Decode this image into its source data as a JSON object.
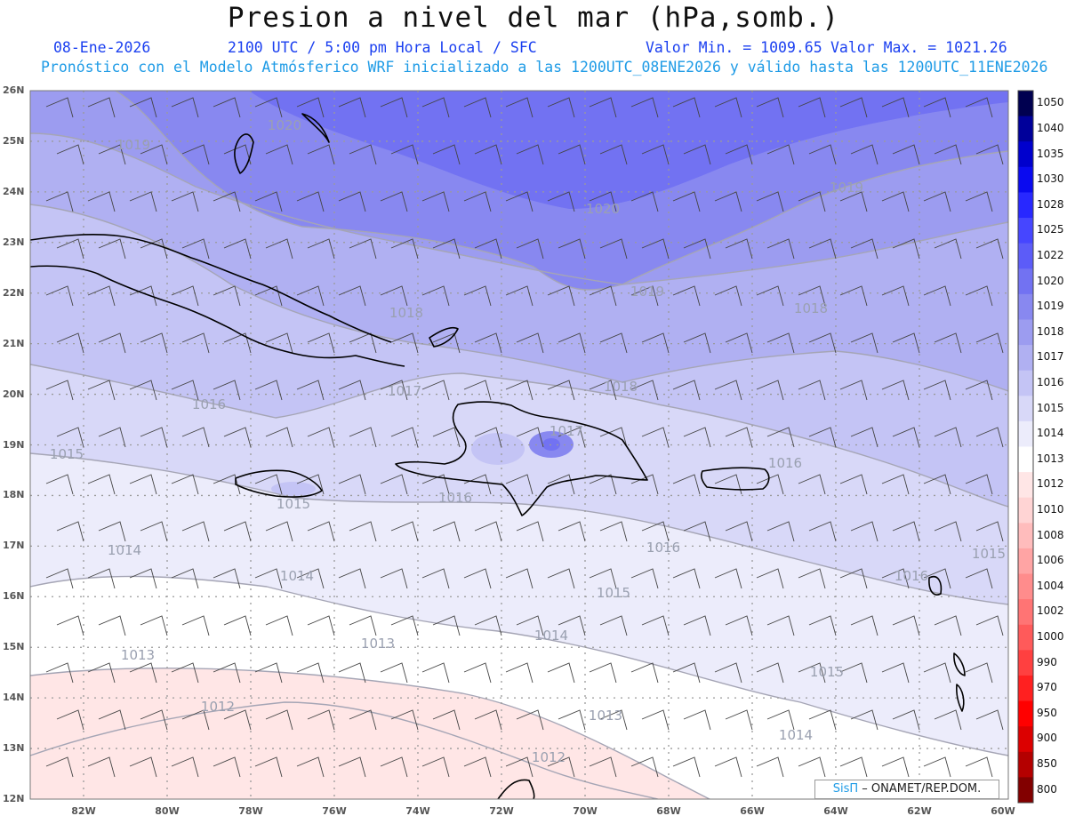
{
  "header": {
    "title": "Presion a nivel del mar (hPa,somb.)",
    "date": "08-Ene-2026",
    "time": "2100 UTC / 5:00 pm Hora Local / SFC",
    "min_label": "Valor Min. = 1009.65",
    "max_label": "Valor Max. = 1021.26",
    "model_info": "Pronóstico con el Modelo Atmósferico WRF inicializado a las 1200UTC_08ENE2026 y válido hasta las  1200UTC_11ENE2026"
  },
  "lat_labels": [
    "26N",
    "25N",
    "24N",
    "23N",
    "22N",
    "21N",
    "20N",
    "19N",
    "18N",
    "17N",
    "16N",
    "15N",
    "14N",
    "13N",
    "12N"
  ],
  "lon_labels": [
    "82W",
    "80W",
    "78W",
    "76W",
    "74W",
    "72W",
    "70W",
    "68W",
    "66W",
    "64W",
    "62W",
    "60W"
  ],
  "colorbar": {
    "levels": [
      "1050",
      "1040",
      "1035",
      "1030",
      "1028",
      "1025",
      "1022",
      "1020",
      "1019",
      "1018",
      "1017",
      "1016",
      "1015",
      "1014",
      "1013",
      "1012",
      "1010",
      "1008",
      "1006",
      "1004",
      "1002",
      "1000",
      "990",
      "970",
      "950",
      "900",
      "850",
      "800"
    ],
    "colors": [
      "#000050",
      "#00009a",
      "#0000cd",
      "#0a0af0",
      "#2828ff",
      "#4646ff",
      "#5c5cf8",
      "#7272f2",
      "#8888f0",
      "#9c9cf0",
      "#b0b0f2",
      "#c4c4f5",
      "#d8d8f8",
      "#ececfb",
      "#ffffff",
      "#ffe6e6",
      "#ffd4d4",
      "#ffbcbc",
      "#ffa4a4",
      "#ff8c8c",
      "#ff7474",
      "#ff5a5a",
      "#ff4040",
      "#ff2020",
      "#ff0000",
      "#dc0000",
      "#b40000",
      "#820000"
    ]
  },
  "contour_labels": [
    "1020",
    "1020",
    "1019",
    "1019",
    "1019",
    "1018",
    "1018",
    "1018",
    "1017",
    "1016",
    "1017",
    "1016",
    "1016",
    "1016",
    "1015",
    "1015",
    "1014",
    "1015",
    "1014",
    "1016",
    "1014",
    "1013",
    "1013",
    "1015",
    "1012",
    "1013",
    "1014",
    "1012",
    "1015"
  ],
  "credit": {
    "brand": "SisΠ",
    "text": "– ONAMET/REP.DOM."
  }
}
